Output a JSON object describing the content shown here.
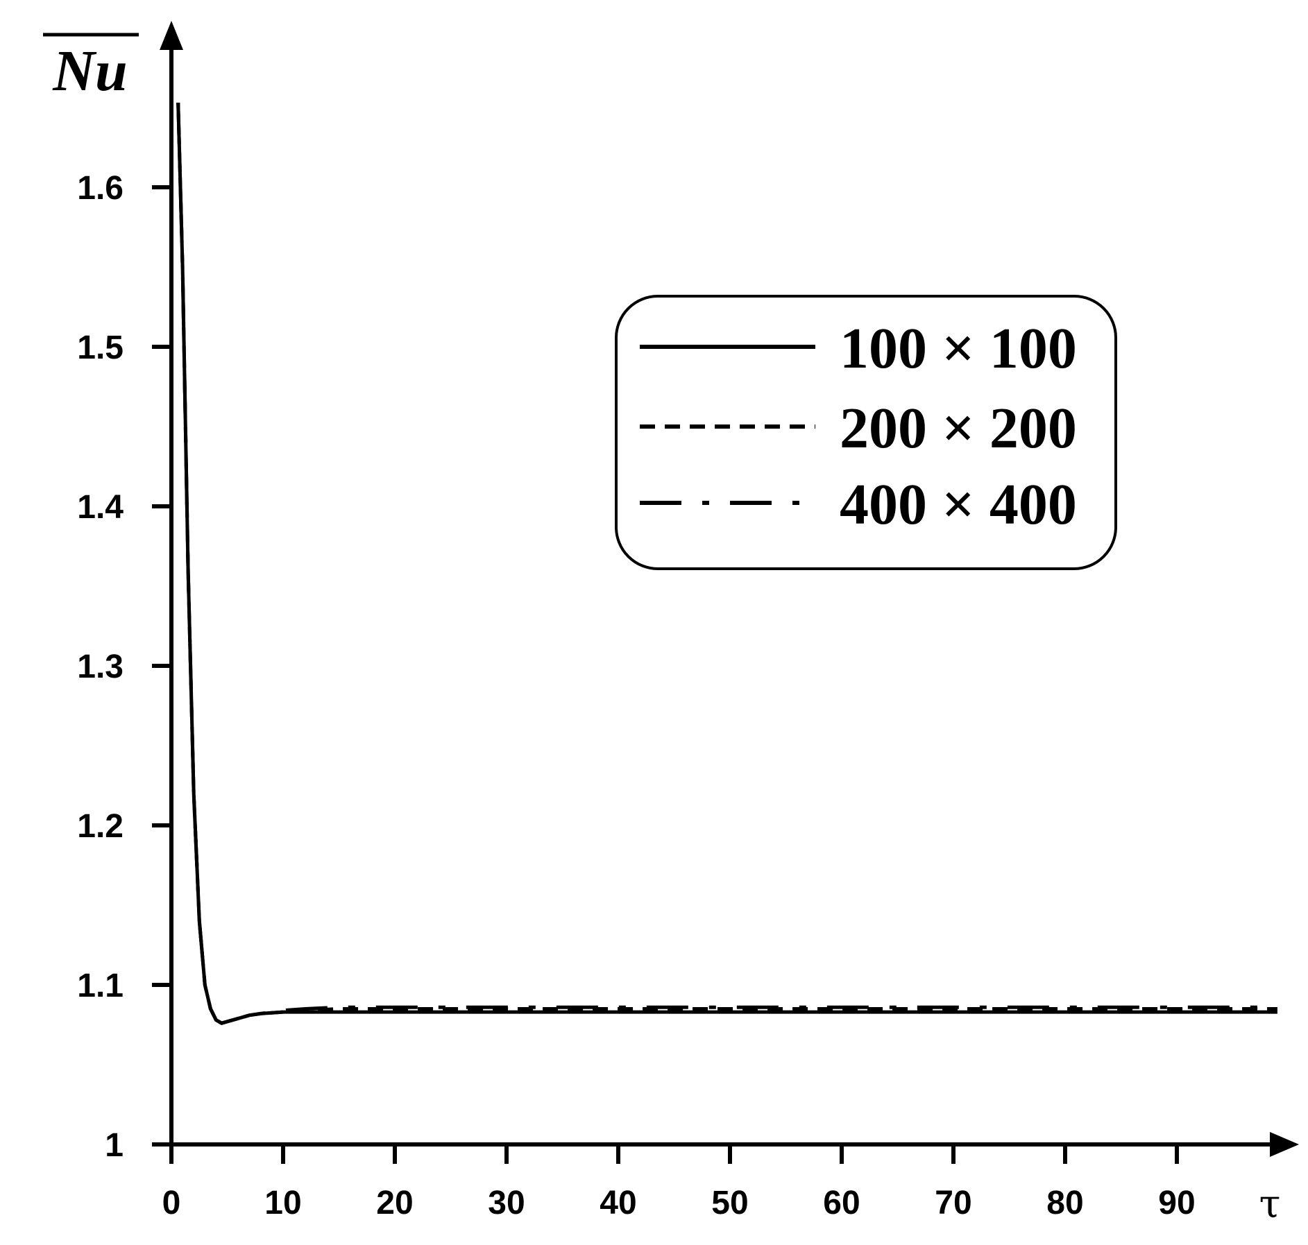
{
  "chart_data": {
    "type": "line",
    "xlabel": "τ",
    "ylabel": "Nu",
    "ylabel_overbar": true,
    "xlim": [
      0,
      100
    ],
    "ylim": [
      1.0,
      1.66
    ],
    "x_ticks": [
      0,
      10,
      20,
      30,
      40,
      50,
      60,
      70,
      80,
      90
    ],
    "y_ticks": [
      1,
      1.1,
      1.2,
      1.3,
      1.4,
      1.5,
      1.6
    ],
    "y_tick_labels": [
      "1",
      "1.1",
      "1.2",
      "1.3",
      "1.4",
      "1.5",
      "1.6"
    ],
    "grid": false,
    "legend_position": "top-right",
    "series": [
      {
        "name": "100 × 100",
        "line_style": "solid",
        "x": [
          0.6,
          1.0,
          1.5,
          2.0,
          2.5,
          3.0,
          3.5,
          4.0,
          4.5,
          5.0,
          6.0,
          7.0,
          8.0,
          10,
          12,
          15,
          20,
          30,
          40,
          50,
          60,
          70,
          80,
          90,
          99
        ],
        "y": [
          1.653,
          1.55,
          1.36,
          1.22,
          1.14,
          1.1,
          1.085,
          1.078,
          1.076,
          1.077,
          1.079,
          1.081,
          1.082,
          1.083,
          1.083,
          1.083,
          1.083,
          1.083,
          1.083,
          1.083,
          1.083,
          1.083,
          1.083,
          1.083,
          1.083
        ]
      },
      {
        "name": "200 × 200",
        "line_style": "dashed",
        "x": [
          0.6,
          1.0,
          1.5,
          2.0,
          2.5,
          3.0,
          3.5,
          4.0,
          4.5,
          5.0,
          6.0,
          7.0,
          8.0,
          10,
          12,
          15,
          20,
          30,
          40,
          50,
          60,
          70,
          80,
          90,
          99
        ],
        "y": [
          1.653,
          1.55,
          1.36,
          1.22,
          1.14,
          1.1,
          1.085,
          1.078,
          1.076,
          1.077,
          1.079,
          1.081,
          1.082,
          1.083,
          1.084,
          1.085,
          1.085,
          1.085,
          1.085,
          1.085,
          1.085,
          1.085,
          1.085,
          1.085,
          1.085
        ]
      },
      {
        "name": "400 × 400",
        "line_style": "dash-dot",
        "x": [
          0.6,
          1.0,
          1.5,
          2.0,
          2.5,
          3.0,
          3.5,
          4.0,
          4.5,
          5.0,
          6.0,
          7.0,
          8.0,
          10,
          12,
          15,
          20,
          30,
          40,
          50,
          60,
          70,
          80,
          90,
          99
        ],
        "y": [
          1.653,
          1.55,
          1.36,
          1.22,
          1.14,
          1.1,
          1.085,
          1.078,
          1.076,
          1.077,
          1.079,
          1.081,
          1.082,
          1.084,
          1.085,
          1.086,
          1.086,
          1.086,
          1.086,
          1.086,
          1.086,
          1.086,
          1.086,
          1.086,
          1.086
        ]
      }
    ],
    "colors": {
      "line": "#000000",
      "background": "#ffffff"
    }
  }
}
